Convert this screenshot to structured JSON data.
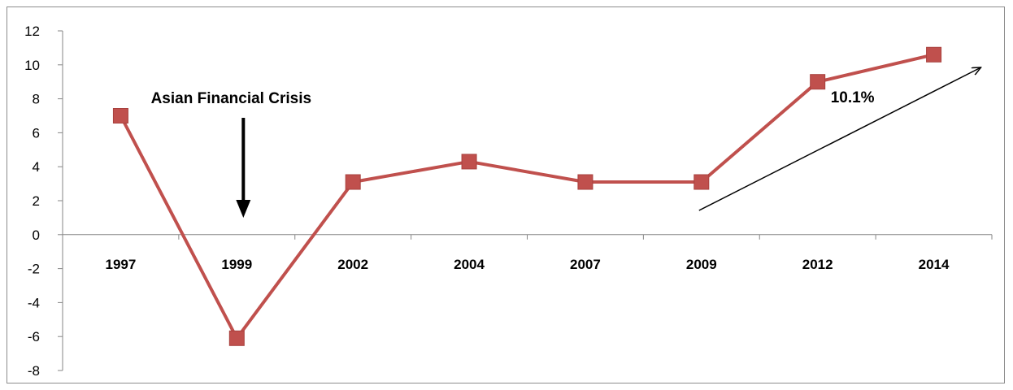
{
  "chart_data": {
    "type": "line",
    "categories": [
      "1997",
      "1999",
      "2002",
      "2004",
      "2007",
      "2009",
      "2012",
      "2014"
    ],
    "series": [
      {
        "values": [
          7.0,
          -6.1,
          3.1,
          4.3,
          3.1,
          3.1,
          9.0,
          10.6
        ],
        "color": "#c0504d"
      }
    ],
    "ylim": [
      -8,
      12
    ],
    "yticks": [
      12,
      10,
      8,
      6,
      4,
      2,
      0,
      -2,
      -4,
      -6,
      -8
    ],
    "title": "",
    "xlabel": "",
    "ylabel": "",
    "grid": false,
    "legend": "none",
    "annotations": [
      {
        "text": "Asian Financial Crisis",
        "type": "down-arrow",
        "category": "1999"
      },
      {
        "text": "10.1%",
        "type": "trend-arrow",
        "from_category": "2009",
        "to_category": "2014"
      }
    ]
  }
}
